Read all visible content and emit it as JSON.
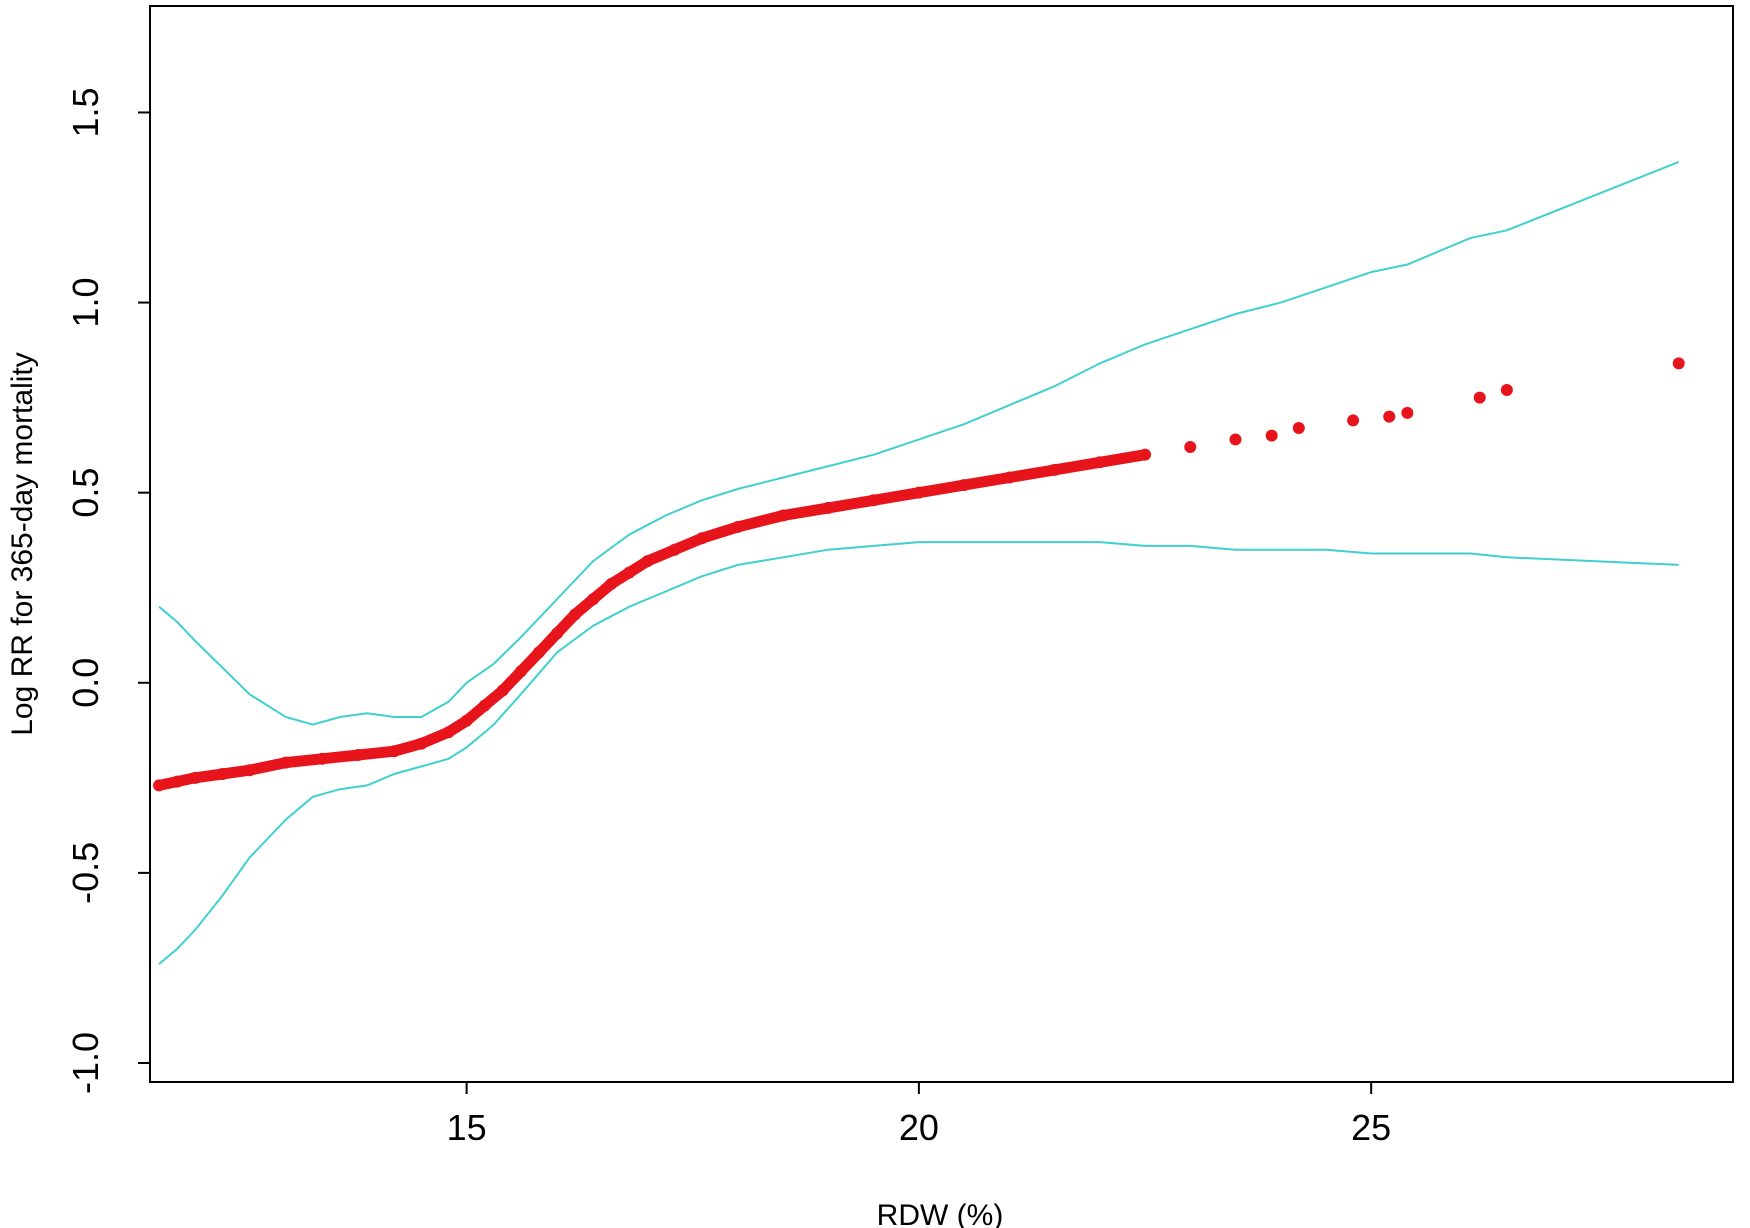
{
  "chart_data": {
    "type": "scatter",
    "xlabel": "RDW (%)",
    "ylabel": "Log RR for 365-day mortality",
    "xlim": [
      11.5,
      29.0
    ],
    "ylim": [
      -1.05,
      1.78
    ],
    "x_ticks": [
      15,
      20,
      25
    ],
    "y_ticks": [
      -1.0,
      -0.5,
      0.0,
      0.5,
      1.0,
      1.5
    ],
    "x_tick_labels": [
      "15",
      "20",
      "25"
    ],
    "y_tick_labels": [
      "-1.0",
      "-0.5",
      "0.0",
      "0.5",
      "1.0",
      "1.5"
    ],
    "grid": false,
    "legend": "none",
    "series": [
      {
        "role": "estimate",
        "color": "#e8141c",
        "x": [
          11.6,
          11.8,
          12.0,
          12.3,
          12.6,
          13.0,
          13.4,
          13.8,
          14.2,
          14.5,
          14.8,
          15.0,
          15.2,
          15.4,
          15.6,
          15.8,
          16.0,
          16.2,
          16.4,
          16.6,
          16.8,
          17.0,
          17.3,
          17.6,
          18.0,
          18.5,
          19.0,
          19.5,
          20.0,
          20.5,
          21.0,
          21.5,
          22.0,
          22.5,
          23.0,
          23.5,
          23.9,
          24.2,
          24.8,
          25.2,
          25.4,
          26.2,
          26.5,
          28.4
        ],
        "y": [
          -0.27,
          -0.26,
          -0.25,
          -0.24,
          -0.23,
          -0.21,
          -0.2,
          -0.19,
          -0.18,
          -0.16,
          -0.13,
          -0.1,
          -0.06,
          -0.02,
          0.03,
          0.08,
          0.13,
          0.18,
          0.22,
          0.26,
          0.29,
          0.32,
          0.35,
          0.38,
          0.41,
          0.44,
          0.46,
          0.48,
          0.5,
          0.52,
          0.54,
          0.56,
          0.58,
          0.6,
          0.62,
          0.64,
          0.65,
          0.67,
          0.69,
          0.7,
          0.71,
          0.75,
          0.77,
          0.84
        ]
      },
      {
        "role": "upper-ci",
        "color": "#40d0d0",
        "x": [
          11.6,
          11.8,
          12.0,
          12.3,
          12.6,
          13.0,
          13.3,
          13.6,
          13.9,
          14.2,
          14.5,
          14.8,
          15.0,
          15.3,
          15.6,
          16.0,
          16.4,
          16.8,
          17.2,
          17.6,
          18.0,
          18.5,
          19.0,
          19.5,
          20.0,
          20.5,
          21.0,
          21.5,
          22.0,
          22.5,
          23.0,
          23.5,
          24.0,
          24.5,
          25.0,
          25.4,
          26.1,
          26.5,
          28.4
        ],
        "y": [
          0.2,
          0.16,
          0.11,
          0.04,
          -0.03,
          -0.09,
          -0.11,
          -0.09,
          -0.08,
          -0.09,
          -0.09,
          -0.05,
          0.0,
          0.05,
          0.12,
          0.22,
          0.32,
          0.39,
          0.44,
          0.48,
          0.51,
          0.54,
          0.57,
          0.6,
          0.64,
          0.68,
          0.73,
          0.78,
          0.84,
          0.89,
          0.93,
          0.97,
          1.0,
          1.04,
          1.08,
          1.1,
          1.17,
          1.19,
          1.37
        ]
      },
      {
        "role": "lower-ci",
        "color": "#40d0d0",
        "x": [
          11.6,
          11.8,
          12.0,
          12.3,
          12.6,
          13.0,
          13.3,
          13.6,
          13.9,
          14.2,
          14.5,
          14.8,
          15.0,
          15.3,
          15.6,
          16.0,
          16.4,
          16.8,
          17.2,
          17.6,
          18.0,
          18.5,
          19.0,
          19.5,
          20.0,
          20.5,
          21.0,
          21.5,
          22.0,
          22.5,
          23.0,
          23.5,
          24.0,
          24.5,
          25.0,
          25.4,
          26.1,
          26.5,
          28.4
        ],
        "y": [
          -0.74,
          -0.7,
          -0.65,
          -0.56,
          -0.46,
          -0.36,
          -0.3,
          -0.28,
          -0.27,
          -0.24,
          -0.22,
          -0.2,
          -0.17,
          -0.11,
          -0.03,
          0.08,
          0.15,
          0.2,
          0.24,
          0.28,
          0.31,
          0.33,
          0.35,
          0.36,
          0.37,
          0.37,
          0.37,
          0.37,
          0.37,
          0.36,
          0.36,
          0.35,
          0.35,
          0.35,
          0.34,
          0.34,
          0.34,
          0.33,
          0.31
        ]
      }
    ]
  }
}
